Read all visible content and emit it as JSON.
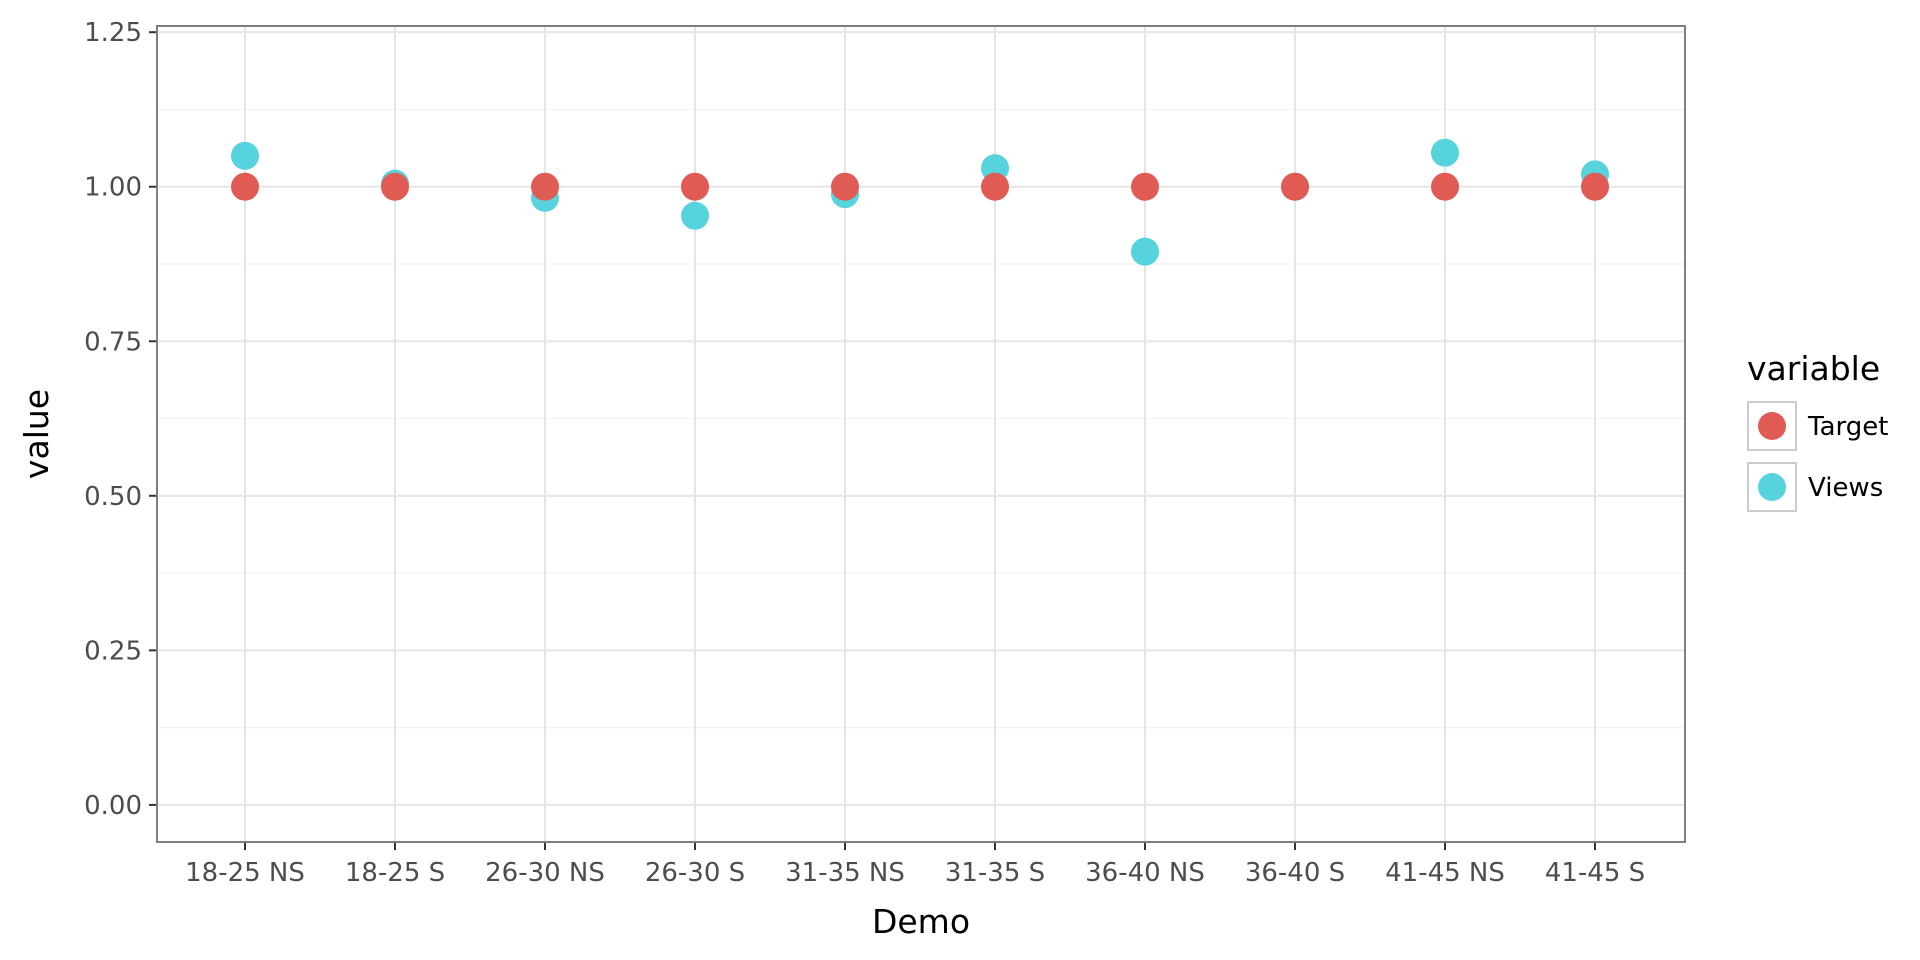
{
  "chart_data": {
    "type": "scatter",
    "xlabel": "Demo",
    "ylabel": "value",
    "categories": [
      "18-25 NS",
      "18-25 S",
      "26-30 NS",
      "26-30 S",
      "31-35 NS",
      "31-35 S",
      "36-40 NS",
      "36-40 S",
      "41-45 NS",
      "41-45 S"
    ],
    "ylim": [
      -0.06,
      1.26
    ],
    "yticks": [
      0.0,
      0.25,
      0.5,
      0.75,
      1.0,
      1.25
    ],
    "ytick_labels": [
      "0.00",
      "0.25",
      "0.50",
      "0.75",
      "1.00",
      "1.25"
    ],
    "grid": true,
    "legend": {
      "title": "variable",
      "position": "right"
    },
    "series": [
      {
        "name": "Views",
        "color": "#56d3dc",
        "values": [
          1.05,
          1.005,
          0.982,
          0.953,
          0.988,
          1.03,
          0.895,
          1.0,
          1.055,
          1.02
        ]
      },
      {
        "name": "Target",
        "color": "#e05b53",
        "values": [
          1.0,
          1.0,
          1.0,
          1.0,
          1.0,
          1.0,
          1.0,
          1.0,
          1.0,
          1.0
        ]
      }
    ],
    "legend_order": [
      "Target",
      "Views"
    ]
  }
}
